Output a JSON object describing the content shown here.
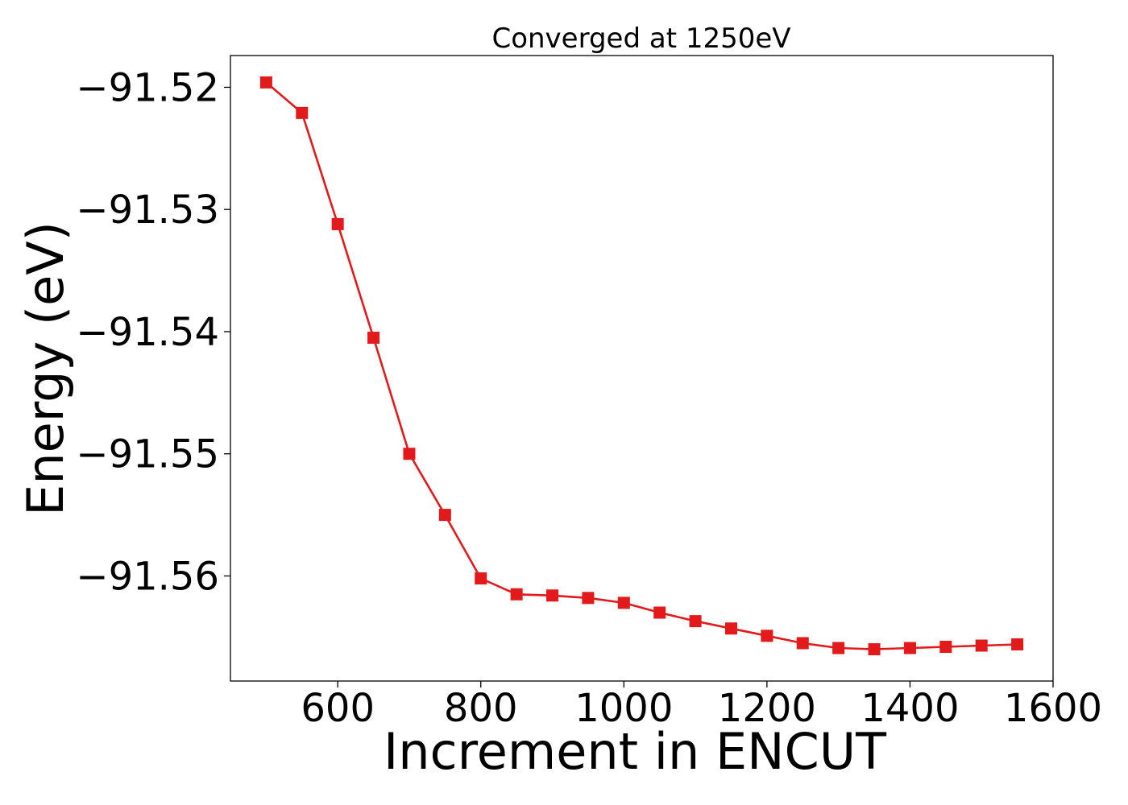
{
  "chart_data": {
    "type": "line",
    "title": "Converged at 1250eV",
    "xlabel": "Increment in ENCUT",
    "ylabel": "Energy (eV)",
    "xlim": [
      450,
      1600
    ],
    "ylim": [
      -91.5686,
      -91.5174
    ],
    "x_ticks": [
      600,
      800,
      1000,
      1200,
      1400,
      1600
    ],
    "x_tick_labels": [
      "600",
      "800",
      "1000",
      "1200",
      "1400",
      "1600"
    ],
    "y_ticks": [
      -91.52,
      -91.53,
      -91.54,
      -91.55,
      -91.56
    ],
    "y_tick_labels": [
      "−91.52",
      "−91.53",
      "−91.54",
      "−91.55",
      "−91.56"
    ],
    "grid": false,
    "series": [
      {
        "color": "#e31a1c",
        "marker": "square",
        "x": [
          500,
          550,
          600,
          650,
          700,
          750,
          800,
          850,
          900,
          950,
          1000,
          1050,
          1100,
          1150,
          1200,
          1250,
          1300,
          1350,
          1400,
          1450,
          1500,
          1550
        ],
        "y": [
          -91.5196,
          -91.5221,
          -91.5312,
          -91.5405,
          -91.55,
          -91.555,
          -91.5602,
          -91.5615,
          -91.5616,
          -91.5618,
          -91.5622,
          -91.563,
          -91.5637,
          -91.5643,
          -91.5649,
          -91.5655,
          -91.5659,
          -91.566,
          -91.5659,
          -91.5658,
          -91.5657,
          -91.5656
        ]
      }
    ]
  }
}
